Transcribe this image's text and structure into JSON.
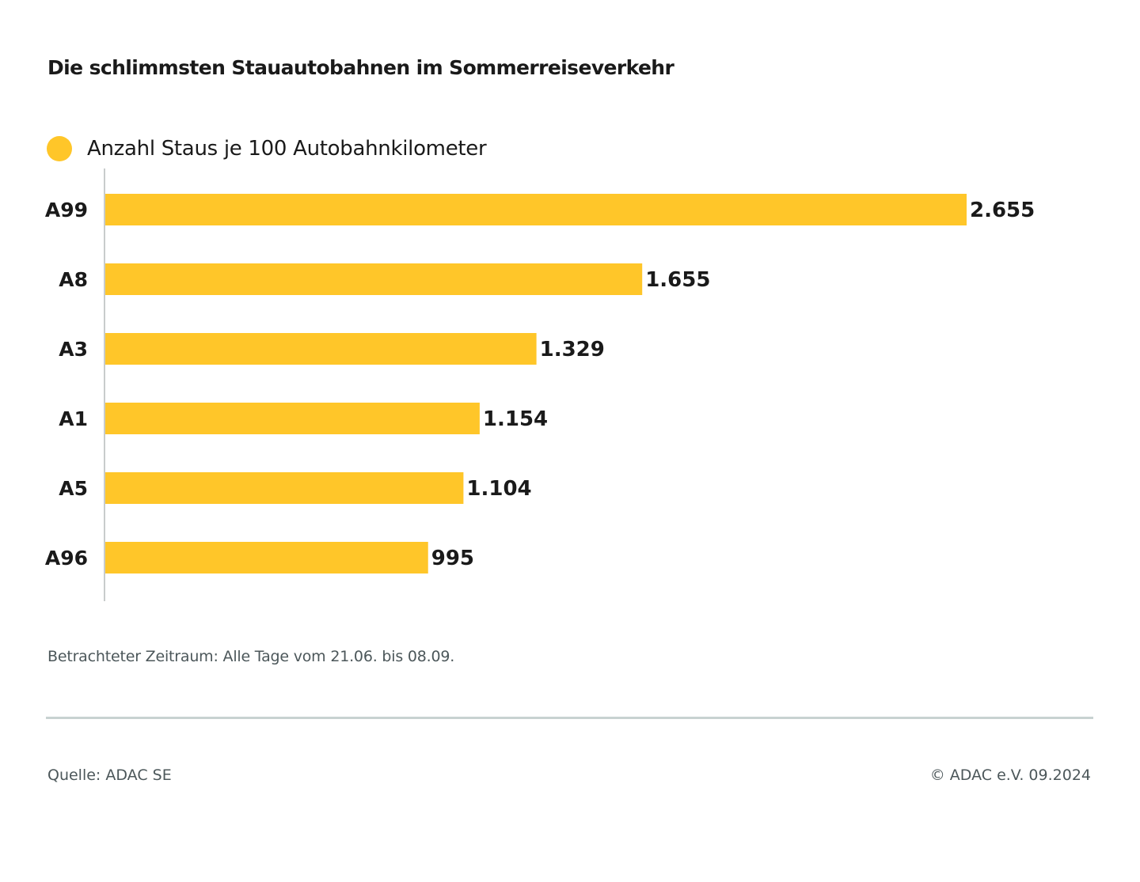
{
  "title": "Die schlimmsten Stauautobahnen im Sommerreiseverkehr",
  "chart_data": {
    "type": "bar",
    "orientation": "horizontal",
    "title": "Die schlimmsten Stauautobahnen im Sommerreiseverkehr",
    "categories": [
      "A99",
      "A8",
      "A3",
      "A1",
      "A5",
      "A96"
    ],
    "series": [
      {
        "name": "Anzahl Staus je 100 Autobahnkilometer",
        "values": [
          2655,
          1655,
          1329,
          1154,
          1104,
          995
        ],
        "value_labels": [
          "2.655",
          "1.655",
          "1.329",
          "1.154",
          "1.104",
          "995"
        ],
        "color": "#FFC629"
      }
    ],
    "xlim": [
      0,
      2655
    ],
    "grid": false,
    "legend": "top-left",
    "xlabel": "",
    "ylabel": ""
  },
  "note": "Betrachteter Zeitraum: Alle Tage vom 21.06. bis 08.09.",
  "source": "Quelle: ADAC SE",
  "copyright": "© ADAC e.V. 09.2024",
  "colors": {
    "bar": "#FFC629",
    "axis": "#c8cccc",
    "text": "#1a1a1a",
    "muted": "#4c575a"
  }
}
